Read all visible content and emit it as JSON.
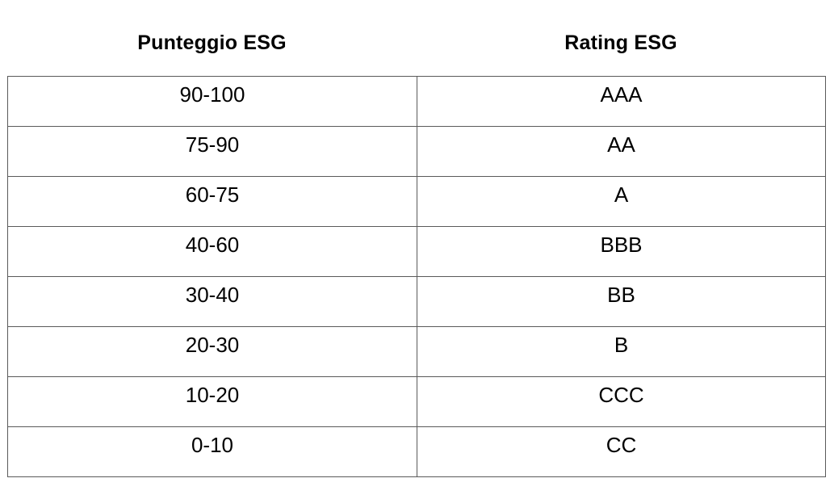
{
  "table": {
    "headers": [
      "Punteggio ESG",
      "Rating ESG"
    ],
    "rows": [
      [
        "90-100",
        "AAA"
      ],
      [
        "75-90",
        "AA"
      ],
      [
        "60-75",
        "A"
      ],
      [
        "40-60",
        "BBB"
      ],
      [
        "30-40",
        "BB"
      ],
      [
        "20-30",
        "B"
      ],
      [
        "10-20",
        "CCC"
      ],
      [
        "0-10",
        "CC"
      ]
    ]
  }
}
